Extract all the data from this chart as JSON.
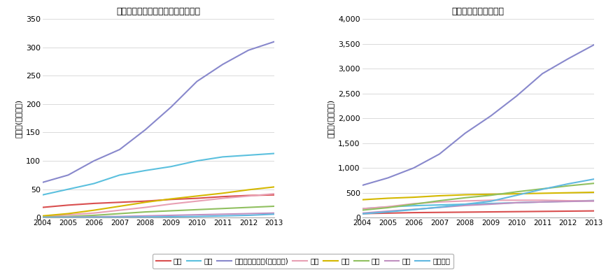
{
  "years": [
    2004,
    2005,
    2006,
    2007,
    2008,
    2009,
    2010,
    2011,
    2012,
    2013
  ],
  "fixed_bb": {
    "日本": [
      18,
      22,
      25,
      27,
      29,
      32,
      34,
      37,
      39,
      40
    ],
    "北米": [
      40,
      50,
      60,
      75,
      83,
      90,
      100,
      107,
      110,
      113
    ],
    "アジア・太平洋(日本以外)": [
      62,
      75,
      100,
      120,
      155,
      195,
      240,
      270,
      295,
      310
    ],
    "東欧": [
      2,
      5,
      8,
      13,
      18,
      24,
      29,
      34,
      38,
      42
    ],
    "西欧": [
      3,
      7,
      13,
      20,
      27,
      33,
      38,
      43,
      49,
      54
    ],
    "南米": [
      1,
      2,
      4,
      7,
      10,
      12,
      14,
      16,
      18,
      20
    ],
    "中東": [
      0.5,
      1,
      1.5,
      2,
      3,
      4,
      5,
      6,
      7,
      8
    ],
    "アフリカ": [
      0.2,
      0.3,
      0.5,
      0.7,
      1,
      1.5,
      2,
      3,
      4,
      6
    ]
  },
  "mobile": {
    "日本": [
      80,
      90,
      100,
      105,
      110,
      115,
      120,
      125,
      130,
      135
    ],
    "北米": [
      180,
      215,
      240,
      255,
      270,
      285,
      300,
      315,
      330,
      345
    ],
    "アジア・太平洋(日本以外)": [
      650,
      800,
      1000,
      1280,
      1700,
      2050,
      2450,
      2900,
      3200,
      3480
    ],
    "東欧": [
      180,
      220,
      280,
      315,
      335,
      350,
      350,
      350,
      340,
      335
    ],
    "西欧": [
      360,
      390,
      410,
      440,
      460,
      470,
      480,
      490,
      500,
      510
    ],
    "南米": [
      150,
      200,
      270,
      340,
      400,
      450,
      520,
      580,
      640,
      690
    ],
    "中東": [
      90,
      130,
      165,
      205,
      245,
      270,
      300,
      315,
      325,
      335
    ],
    "アフリカ": [
      75,
      115,
      160,
      210,
      270,
      330,
      450,
      570,
      680,
      775
    ]
  },
  "fixed_bb_ylim": [
    0,
    350
  ],
  "mobile_ylim": [
    0,
    4000
  ],
  "fixed_bb_yticks": [
    0,
    50,
    100,
    150,
    200,
    250,
    300,
    350
  ],
  "mobile_yticks": [
    0,
    500,
    1000,
    1500,
    2000,
    2500,
    3000,
    3500,
    4000
  ],
  "colors": {
    "日本": "#d94f4f",
    "北米": "#5bc0de",
    "アジア・太平洋(日本以外)": "#8888cc",
    "東欧": "#e8a0b4",
    "西欧": "#d4b800",
    "南米": "#90c060",
    "中東": "#c090c0",
    "アフリカ": "#60b8e0"
  },
  "title_fixed": "【固定ブロードバンド市場契約数】",
  "title_mobile": "【移動体市場契約数】",
  "ylabel": "契約数(百万世帯)",
  "legend_order": [
    "日本",
    "北米",
    "アジア・太平洋(日本以外)",
    "東欧",
    "西欧",
    "南米",
    "中東",
    "アフリカ"
  ]
}
